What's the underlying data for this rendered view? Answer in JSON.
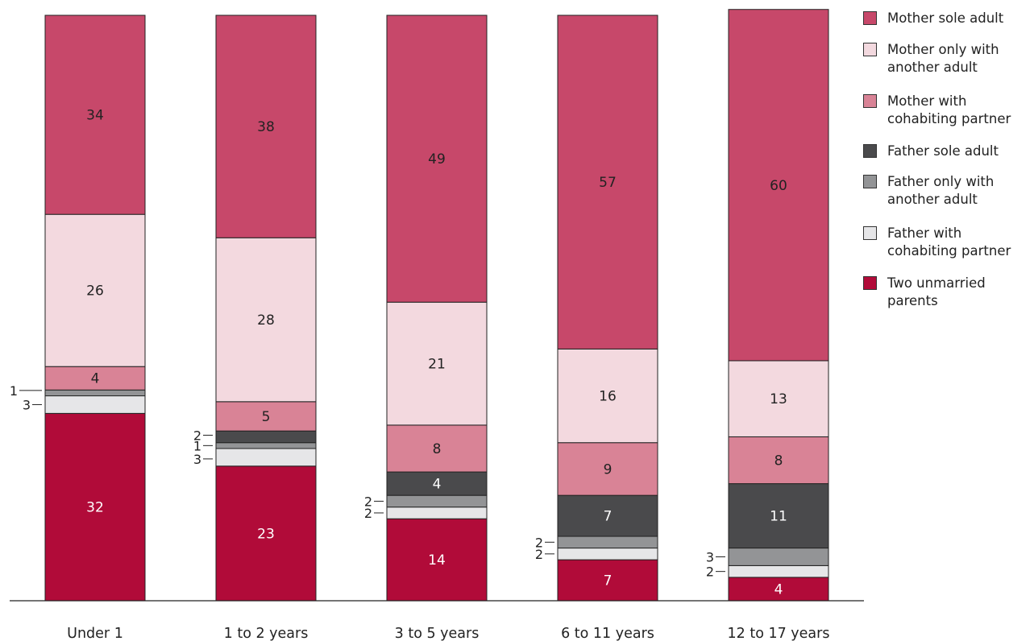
{
  "chart_data": {
    "type": "bar",
    "stacked": true,
    "categories": [
      "Under 1",
      "1 to 2 years",
      "3 to 5 years",
      "6 to 11 years",
      "12 to 17 years"
    ],
    "series": [
      {
        "name": "Two unmarried parents",
        "color": "#b10b39",
        "values": [
          32,
          23,
          14,
          7,
          4
        ]
      },
      {
        "name": "Father with cohabiting partner",
        "color": "#e6e6e8",
        "values": [
          3,
          3,
          2,
          2,
          2
        ]
      },
      {
        "name": "Father only with another adult",
        "color": "#939496",
        "values": [
          1,
          1,
          2,
          2,
          3
        ]
      },
      {
        "name": "Father sole adult",
        "color": "#4a4a4c",
        "values": [
          0,
          2,
          4,
          7,
          11
        ]
      },
      {
        "name": "Mother with cohabiting partner",
        "color": "#d98396",
        "values": [
          4,
          5,
          8,
          9,
          8
        ]
      },
      {
        "name": "Mother only with another adult",
        "color": "#f3d9df",
        "values": [
          26,
          28,
          21,
          16,
          13
        ]
      },
      {
        "name": "Mother sole adult",
        "color": "#c7486a",
        "values": [
          34,
          38,
          49,
          57,
          60
        ]
      }
    ],
    "legend_order": [
      "Mother sole adult",
      "Mother only with another adult",
      "Mother with cohabiting partner",
      "Father sole adult",
      "Father only with another adult",
      "Father with cohabiting partner",
      "Two unmarried parents"
    ],
    "outside_labels": [
      {
        "category": "Under 1",
        "series": "Father only with another adult",
        "text": "1"
      },
      {
        "category": "Under 1",
        "series": "Father with cohabiting partner",
        "text": "3"
      },
      {
        "category": "1 to 2 years",
        "series": "Father sole adult",
        "text": "2"
      },
      {
        "category": "1 to 2 years",
        "series": "Father only with another adult",
        "text": "1"
      },
      {
        "category": "1 to 2 years",
        "series": "Father with cohabiting partner",
        "text": "3"
      },
      {
        "category": "3 to 5 years",
        "series": "Father only with another adult",
        "text": "2"
      },
      {
        "category": "3 to 5 years",
        "series": "Father with cohabiting partner",
        "text": "2"
      },
      {
        "category": "6 to 11 years",
        "series": "Father only with another adult",
        "text": "2"
      },
      {
        "category": "6 to 11 years",
        "series": "Father with cohabiting partner",
        "text": "2"
      },
      {
        "category": "12 to 17 years",
        "series": "Father only with another adult",
        "text": "3"
      },
      {
        "category": "12 to 17 years",
        "series": "Father with cohabiting partner",
        "text": "2"
      }
    ],
    "ylim": [
      0,
      100
    ],
    "grid": false,
    "legend_position": "right",
    "title": "",
    "xlabel": "",
    "ylabel": ""
  }
}
